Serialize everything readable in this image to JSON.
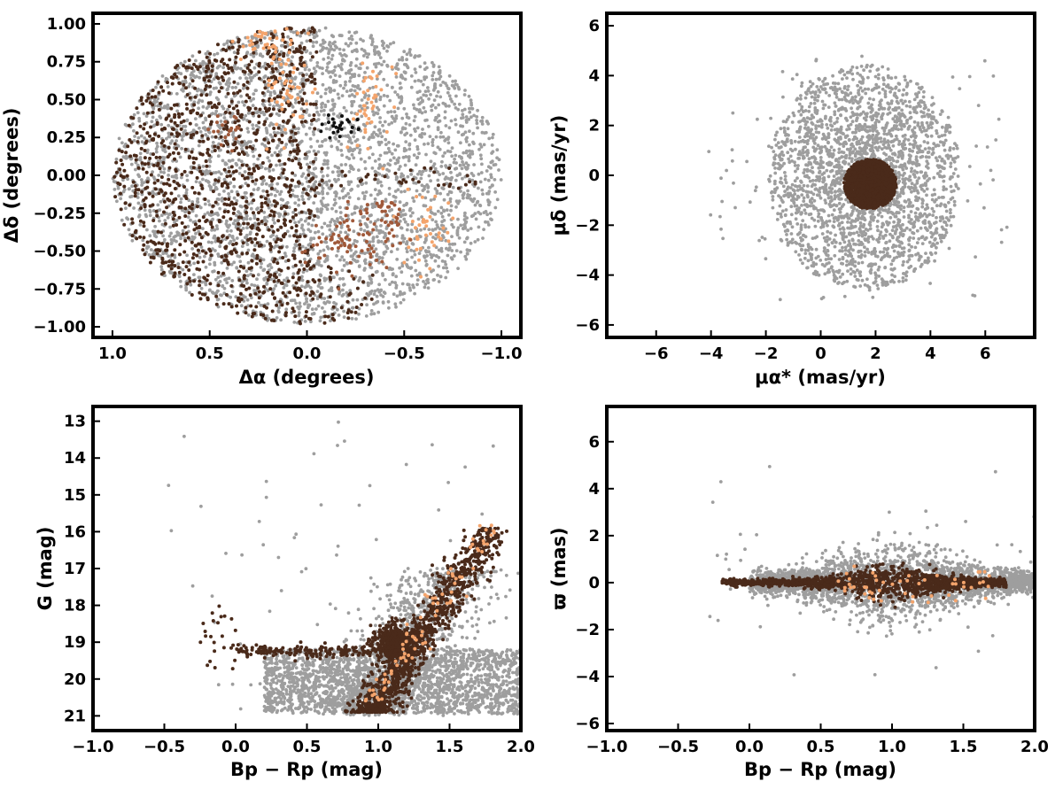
{
  "colors": {
    "field_stars": "#9e9e9e",
    "members_dark": "#4a2a1a",
    "members_mid": "#a0593a",
    "members_light": "#f4a46c",
    "members_black": "#111111",
    "frame": "#000000"
  },
  "chart_data": [
    {
      "id": "sky",
      "type": "scatter",
      "xlabel": "Δα (degrees)",
      "ylabel": "Δδ (degrees)",
      "xlim": [
        1.1,
        -1.1
      ],
      "ylim": [
        -1.07,
        1.07
      ],
      "x_inverted": true,
      "xticks": [
        1.0,
        0.5,
        0.0,
        -0.5,
        -1.0
      ],
      "xtick_labels": [
        "1.0",
        "0.5",
        "0.0",
        "−0.5",
        "−1.0"
      ],
      "yticks": [
        1.0,
        0.75,
        0.5,
        0.25,
        0.0,
        -0.25,
        -0.5,
        -0.75,
        -1.0
      ],
      "ytick_labels": [
        "1.00",
        "0.75",
        "0.50",
        "0.25",
        "0.00",
        "−0.25",
        "−0.50",
        "−0.75",
        "−1.00"
      ],
      "grid": false,
      "series": [
        {
          "role": "field",
          "color": "#9e9e9e",
          "distribution": "uniform disk",
          "center": [
            0.0,
            0.0
          ],
          "radius_x": 1.0,
          "radius_y": 1.0
        },
        {
          "role": "members",
          "color": "#4a2a1a",
          "distribution": "half disk, Δα > 0",
          "center": [
            0.3,
            -0.2
          ],
          "spread": [
            0.45,
            0.55
          ]
        },
        {
          "role": "members",
          "color": "#f4a46c",
          "distribution": "clumps",
          "clumps": [
            [
              0.15,
              0.85
            ],
            [
              -0.35,
              0.45
            ],
            [
              -0.6,
              -0.35
            ]
          ]
        },
        {
          "role": "members",
          "color": "#a0593a",
          "distribution": "clumps",
          "clumps": [
            [
              -0.2,
              -0.45
            ],
            [
              0.35,
              0.3
            ]
          ]
        },
        {
          "role": "members",
          "color": "#111111",
          "distribution": "clump",
          "clumps": [
            [
              -0.18,
              0.35
            ]
          ]
        }
      ]
    },
    {
      "id": "pm",
      "type": "scatter",
      "xlabel": "μα* (mas/yr)",
      "ylabel": "μδ (mas/yr)",
      "xlim": [
        -7.8,
        7.8
      ],
      "ylim": [
        -6.5,
        6.5
      ],
      "xticks": [
        -6,
        -4,
        -2,
        0,
        2,
        4,
        6
      ],
      "xtick_labels": [
        "−6",
        "−4",
        "−2",
        "0",
        "2",
        "4",
        "6"
      ],
      "yticks": [
        6,
        4,
        2,
        0,
        -2,
        -4,
        -6
      ],
      "ytick_labels": [
        "6",
        "4",
        "2",
        "0",
        "−2",
        "−4",
        "−6"
      ],
      "grid": false,
      "series": [
        {
          "role": "field",
          "color": "#9e9e9e",
          "distribution": "disk",
          "center": [
            1.6,
            -0.2
          ],
          "radius": 3.5
        },
        {
          "role": "members",
          "color": "#4a2a1a",
          "distribution": "compact clump",
          "center": [
            1.8,
            -0.3
          ],
          "spread": [
            0.55,
            0.55
          ]
        }
      ]
    },
    {
      "id": "cmd",
      "type": "scatter",
      "xlabel": "Bp − Rp (mag)",
      "ylabel": "G (mag)",
      "xlim": [
        -1.0,
        2.0
      ],
      "ylim": [
        21.4,
        12.6
      ],
      "y_inverted": true,
      "xticks": [
        -1.0,
        -0.5,
        0.0,
        0.5,
        1.0,
        1.5,
        2.0
      ],
      "xtick_labels": [
        "−1.0",
        "−0.5",
        "0.0",
        "0.5",
        "1.0",
        "1.5",
        "2.0"
      ],
      "yticks": [
        21,
        20,
        19,
        18,
        17,
        16,
        15,
        14,
        13
      ],
      "ytick_labels": [
        "21",
        "20",
        "19",
        "18",
        "17",
        "16",
        "15",
        "14",
        "13"
      ],
      "grid": false,
      "series": [
        {
          "role": "field",
          "color": "#9e9e9e",
          "distribution": "faint band G 19–21, plus plume",
          "center": [
            1.1,
            20.2
          ]
        },
        {
          "role": "members",
          "color": "#4a2a1a",
          "distribution": "red giant branch + horizontal branch",
          "rgb_tip": [
            1.85,
            15.9
          ],
          "red_clump": [
            1.1,
            19.0
          ],
          "hb": [
            [
              0.0,
              19.3
            ],
            [
              0.6,
              19.2
            ]
          ]
        },
        {
          "role": "members",
          "color": "#f4a46c",
          "distribution": "sparse along RGB"
        }
      ]
    },
    {
      "id": "parallax",
      "type": "scatter",
      "xlabel": "Bp − Rp (mag)",
      "ylabel": "ϖ (mas)",
      "xlim": [
        -1.0,
        2.0
      ],
      "ylim": [
        -6.3,
        7.5
      ],
      "xticks": [
        -1.0,
        -0.5,
        0.0,
        0.5,
        1.0,
        1.5,
        2.0
      ],
      "xtick_labels": [
        "−1.0",
        "−0.5",
        "0.0",
        "0.5",
        "1.0",
        "1.5",
        "2.0"
      ],
      "yticks": [
        6,
        4,
        2,
        0,
        -2,
        -4,
        -6
      ],
      "ytick_labels": [
        "6",
        "4",
        "2",
        "0",
        "−2",
        "−4",
        "−6"
      ],
      "grid": false,
      "series": [
        {
          "role": "field",
          "color": "#9e9e9e",
          "distribution": "spindle",
          "center": [
            1.0,
            0.0
          ],
          "spread": [
            0.55,
            0.7
          ]
        },
        {
          "role": "members",
          "color": "#4a2a1a",
          "distribution": "tight spindle around ϖ = 0",
          "center": [
            1.0,
            0.0
          ],
          "spread": [
            0.45,
            0.25
          ]
        },
        {
          "role": "members",
          "color": "#f4a46c",
          "distribution": "sparse",
          "center": [
            1.0,
            0.0
          ]
        }
      ]
    }
  ]
}
